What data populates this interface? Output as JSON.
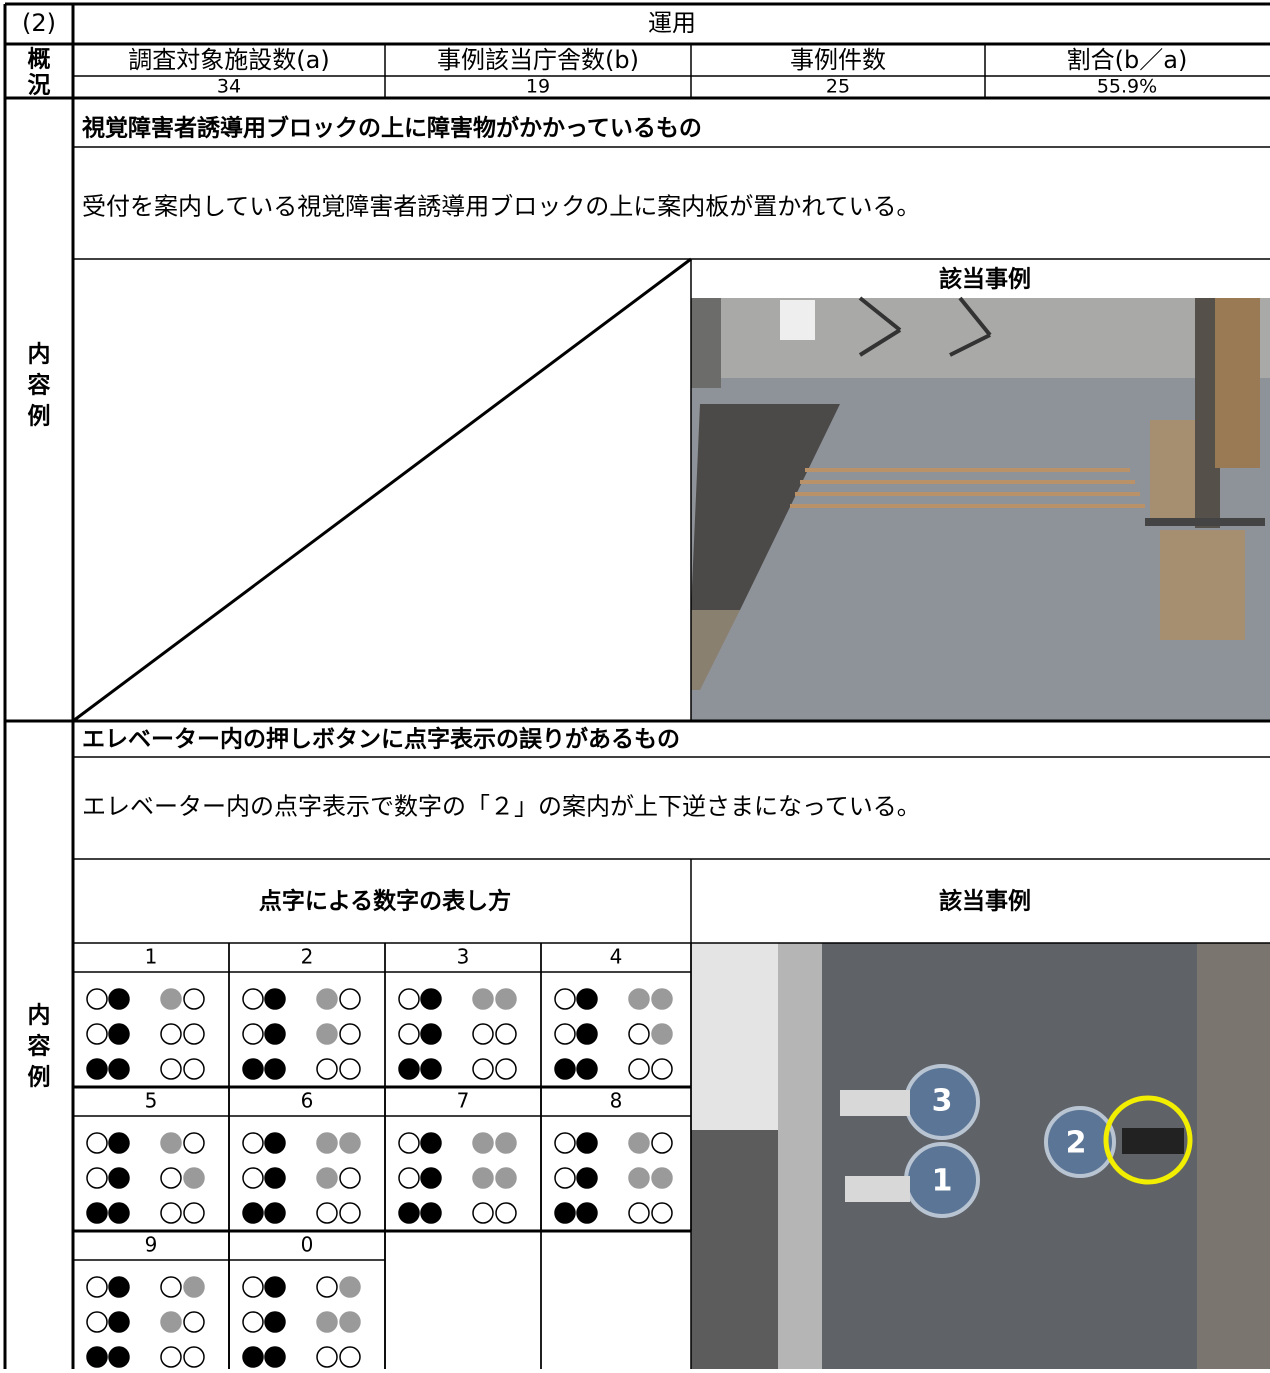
{
  "header": {
    "number": "(2)",
    "title": "運用"
  },
  "overview": {
    "label": [
      "概",
      "況"
    ],
    "columns": [
      "調査対象施設数(a)",
      "事例該当庁舎数(b)",
      "事例件数",
      "割合(b／a)"
    ],
    "values": [
      "34",
      "19",
      "25",
      "55.9%"
    ]
  },
  "cases": [
    {
      "label": [
        "内",
        "容",
        "例"
      ],
      "heading": "視覚障害者誘導用ブロックの上に障害物がかかっているもの",
      "description": "受付を案内している視覚障害者誘導用ブロックの上に案内板が置かれている。",
      "example_label": "該当事例"
    },
    {
      "label": [
        "内",
        "容",
        "例"
      ],
      "heading": "エレベーター内の押しボタンに点字表示の誤りがあるもの",
      "description": "エレベーター内の点字表示で数字の「２」の案内が上下逆さまになっている。",
      "legend_title": "点字による数字の表し方",
      "digits": [
        "1",
        "2",
        "3",
        "4",
        "5",
        "6",
        "7",
        "8",
        "9",
        "0"
      ],
      "example_label": "該当事例",
      "photo_labels": [
        "3",
        "1",
        "2"
      ]
    }
  ]
}
